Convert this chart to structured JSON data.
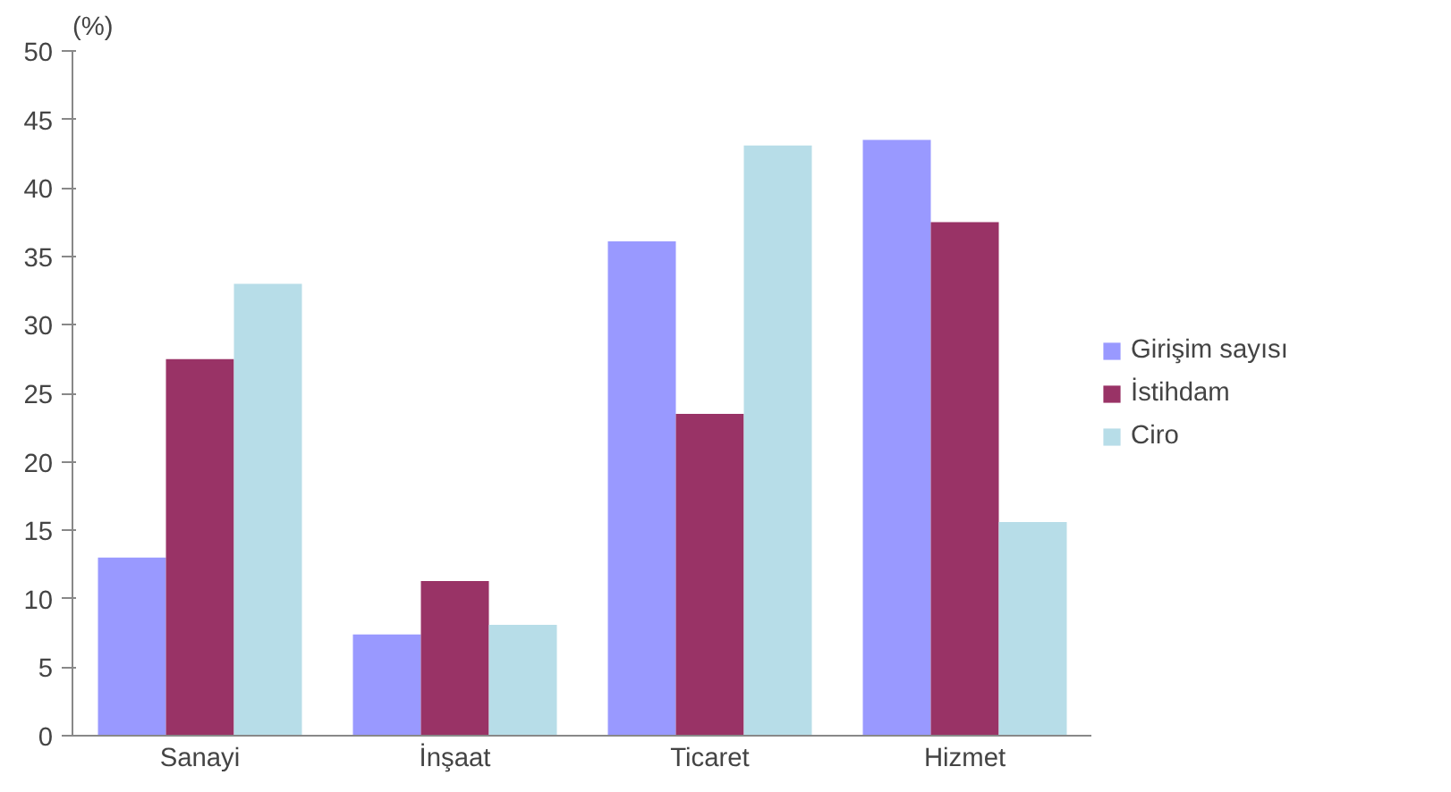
{
  "chart_data": {
    "type": "bar",
    "ylabel": "(%)",
    "categories": [
      "Sanayi",
      "İnşaat",
      "Ticaret",
      "Hizmet"
    ],
    "series": [
      {
        "name": "Girişim sayısı",
        "color": "#9999ff",
        "values": [
          13,
          7.4,
          36.1,
          43.5
        ]
      },
      {
        "name": "İstihdam",
        "color": "#993366",
        "values": [
          27.5,
          11.3,
          23.5,
          37.5
        ]
      },
      {
        "name": "Ciro",
        "color": "#b7dde8",
        "values": [
          33,
          8.1,
          43.1,
          15.6
        ]
      }
    ],
    "ylim": [
      0,
      50
    ],
    "yticks": [
      0,
      5,
      10,
      15,
      20,
      25,
      30,
      35,
      40,
      45,
      50
    ],
    "grid": false,
    "legend": "right"
  }
}
